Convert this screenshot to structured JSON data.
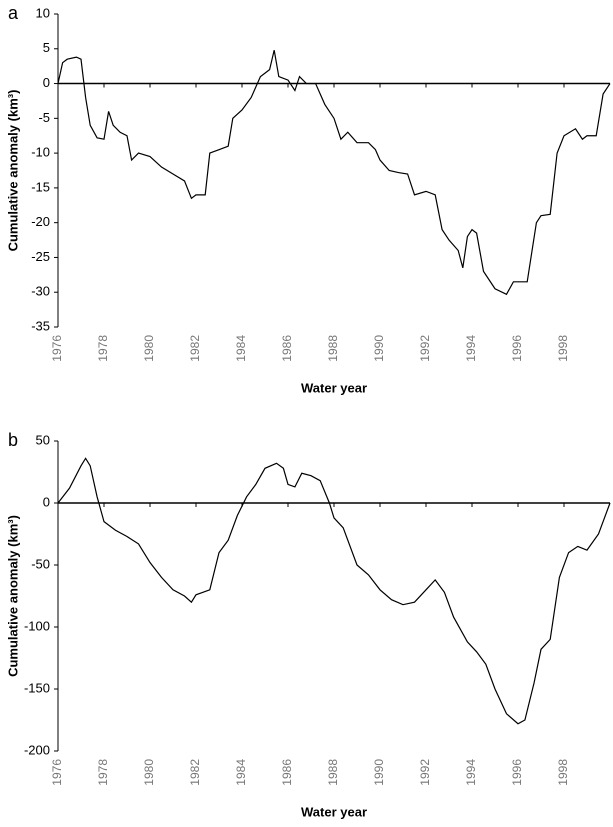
{
  "chart_data": [
    {
      "type": "line",
      "panel_label": "a",
      "y_label": "Cumulative anomaly (km³)",
      "x_label": "Water year",
      "xlim": [
        1976,
        2000
      ],
      "xticks": [
        1976,
        1978,
        1980,
        1982,
        1984,
        1986,
        1988,
        1990,
        1992,
        1994,
        1996,
        1998
      ],
      "ylim": [
        -35,
        10
      ],
      "yticks": [
        10,
        5,
        0,
        -5,
        -10,
        -15,
        -20,
        -25,
        -30,
        -35
      ],
      "color": "#000000",
      "x": [
        1976.0,
        1976.2,
        1976.4,
        1976.8,
        1977.0,
        1977.2,
        1977.4,
        1977.7,
        1978.0,
        1978.2,
        1978.4,
        1978.7,
        1979.0,
        1979.2,
        1979.5,
        1980.0,
        1980.5,
        1981.0,
        1981.5,
        1981.8,
        1982.0,
        1982.4,
        1982.6,
        1983.0,
        1983.4,
        1983.6,
        1984.0,
        1984.4,
        1984.8,
        1985.2,
        1985.4,
        1985.6,
        1986.0,
        1986.3,
        1986.5,
        1986.8,
        1987.2,
        1987.6,
        1988.0,
        1988.3,
        1988.6,
        1989.0,
        1989.5,
        1989.8,
        1990.0,
        1990.4,
        1990.8,
        1991.2,
        1991.5,
        1992.0,
        1992.4,
        1992.7,
        1993.0,
        1993.4,
        1993.6,
        1993.8,
        1994.0,
        1994.2,
        1994.5,
        1995.0,
        1995.5,
        1995.8,
        1996.4,
        1996.8,
        1997.0,
        1997.4,
        1997.7,
        1998.0,
        1998.5,
        1998.8,
        1999.0,
        1999.4,
        1999.7,
        2000.0
      ],
      "values": [
        0,
        3,
        3.5,
        3.8,
        3.5,
        -2,
        -6,
        -7.8,
        -8,
        -4,
        -6,
        -7,
        -7.5,
        -11,
        -10,
        -10.5,
        -12,
        -13,
        -14,
        -16.5,
        -16,
        -16,
        -10,
        -9.5,
        -9,
        -5,
        -3.8,
        -2,
        1,
        2,
        4.8,
        1,
        0.5,
        -1,
        1,
        0,
        0,
        -3,
        -5,
        -8,
        -7,
        -8.5,
        -8.5,
        -9.5,
        -11,
        -12.5,
        -12.8,
        -13,
        -16,
        -15.5,
        -16,
        -21,
        -22.5,
        -24,
        -26.5,
        -22,
        -21,
        -21.5,
        -27,
        -29.5,
        -30.3,
        -28.5,
        -28.5,
        -20,
        -19,
        -18.8,
        -10,
        -7.5,
        -6.5,
        -8,
        -7.5,
        -7.5,
        -1.5,
        0
      ]
    },
    {
      "type": "line",
      "panel_label": "b",
      "y_label": "Cumulative anomaly (km³)",
      "x_label": "Water year",
      "xlim": [
        1976,
        2000
      ],
      "xticks": [
        1976,
        1978,
        1980,
        1982,
        1984,
        1986,
        1988,
        1990,
        1992,
        1994,
        1996,
        1998
      ],
      "ylim": [
        -200,
        50
      ],
      "yticks": [
        50,
        0,
        -50,
        -100,
        -150,
        -200
      ],
      "color": "#000000",
      "x": [
        1976.0,
        1976.5,
        1977.0,
        1977.2,
        1977.4,
        1977.7,
        1978.0,
        1978.5,
        1979.0,
        1979.5,
        1980.0,
        1980.5,
        1981.0,
        1981.5,
        1981.8,
        1982.0,
        1982.3,
        1982.6,
        1983.0,
        1983.4,
        1983.8,
        1984.2,
        1984.6,
        1985.0,
        1985.5,
        1985.8,
        1986.0,
        1986.3,
        1986.6,
        1987.0,
        1987.4,
        1987.8,
        1988.0,
        1988.4,
        1989.0,
        1989.5,
        1990.0,
        1990.5,
        1991.0,
        1991.5,
        1992.0,
        1992.4,
        1992.8,
        1993.2,
        1993.8,
        1994.2,
        1994.6,
        1995.0,
        1995.5,
        1996.0,
        1996.3,
        1996.7,
        1997.0,
        1997.4,
        1997.8,
        1998.2,
        1998.6,
        1999.0,
        1999.5,
        2000.0
      ],
      "values": [
        0,
        12,
        30,
        36,
        30,
        5,
        -15,
        -22,
        -27,
        -33,
        -48,
        -60,
        -70,
        -75,
        -80,
        -74,
        -72,
        -70,
        -40,
        -30,
        -10,
        5,
        15,
        28,
        32,
        28,
        15,
        13,
        24,
        22,
        18,
        0,
        -12,
        -20,
        -50,
        -58,
        -70,
        -78,
        -82,
        -80,
        -70,
        -62,
        -72,
        -92,
        -112,
        -120,
        -130,
        -150,
        -170,
        -178,
        -175,
        -145,
        -118,
        -110,
        -60,
        -40,
        -35,
        -38,
        -25,
        0
      ]
    }
  ]
}
